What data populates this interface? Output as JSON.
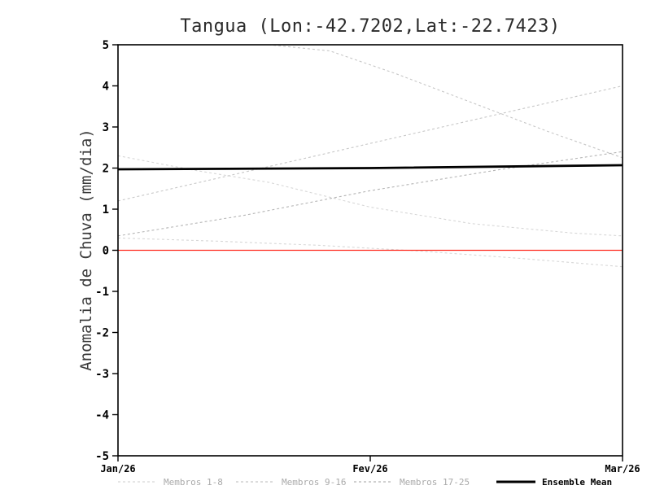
{
  "chart_data": {
    "type": "line",
    "title": "Tangua (Lon:-42.7202,Lat:-22.7423)",
    "xlabel": "",
    "ylabel": "Anomalia de Chuva (mm/dia)",
    "ylim": [
      -5,
      5
    ],
    "ytick_step": 1,
    "x_ticklabels": [
      "Jan/26",
      "Fev/26",
      "Mar/26"
    ],
    "x_tick_positions": [
      0,
      0.5,
      1
    ],
    "members": [
      {
        "name": "member-a",
        "group": 1,
        "x": [
          0,
          0.3,
          0.42,
          0.55,
          0.7,
          0.85,
          1
        ],
        "y": [
          5.35,
          5.0,
          4.85,
          4.3,
          3.6,
          2.9,
          2.25
        ]
      },
      {
        "name": "member-b",
        "group": 0,
        "x": [
          0,
          0.15,
          0.3,
          0.5,
          0.7,
          0.9,
          1
        ],
        "y": [
          2.3,
          1.95,
          1.65,
          1.05,
          0.65,
          0.42,
          0.35
        ]
      },
      {
        "name": "member-c",
        "group": 1,
        "x": [
          0,
          0.25,
          0.5,
          0.75,
          1
        ],
        "y": [
          1.2,
          1.9,
          2.6,
          3.3,
          4.0
        ]
      },
      {
        "name": "member-d",
        "group": 2,
        "x": [
          0,
          0.25,
          0.5,
          0.75,
          1
        ],
        "y": [
          0.35,
          0.85,
          1.45,
          1.95,
          2.4
        ]
      },
      {
        "name": "member-e",
        "group": 0,
        "x": [
          0,
          0.2,
          0.4,
          0.6,
          0.8,
          1
        ],
        "y": [
          0.3,
          0.22,
          0.12,
          -0.02,
          -0.2,
          -0.4
        ]
      }
    ],
    "zero_line": {
      "y": 0,
      "color": "#ff2a1e"
    },
    "mean": {
      "name": "Ensemble Mean",
      "x": [
        0,
        0.5,
        1
      ],
      "y": [
        1.97,
        2.0,
        2.07
      ],
      "color": "#000000"
    },
    "legend": [
      {
        "label": "Membros 1-8",
        "color": "#d7d7d7",
        "dashed": true
      },
      {
        "label": "Membros 9-16",
        "color": "#c7c7c7",
        "dashed": true
      },
      {
        "label": "Membros 17-25",
        "color": "#b5b5b5",
        "dashed": true
      },
      {
        "label": "Ensemble Mean",
        "color": "#000000",
        "dashed": false
      }
    ],
    "legend_position": "bottom"
  }
}
